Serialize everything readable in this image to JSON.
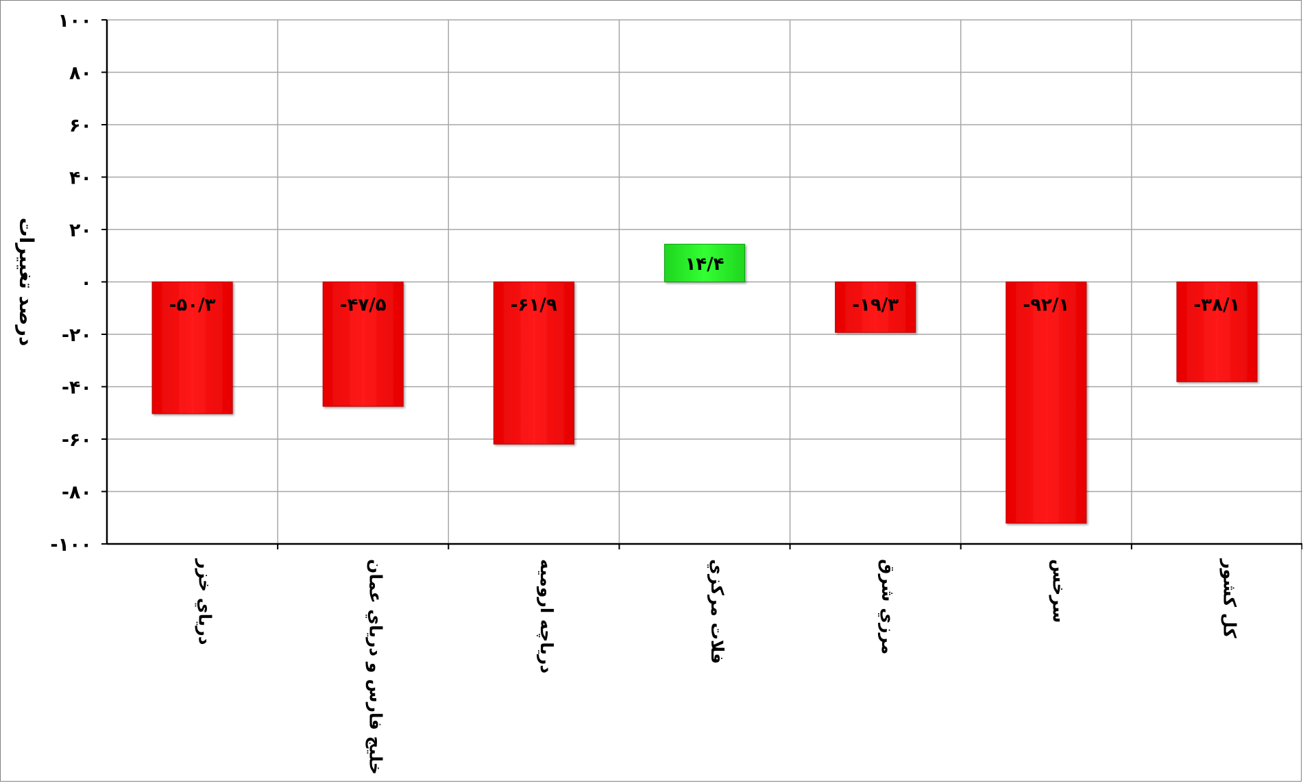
{
  "chart_data": {
    "type": "bar",
    "title": "",
    "xlabel": "",
    "ylabel": "درصد تغییرات",
    "ylim": [
      -100,
      100
    ],
    "ytick_values": [
      100,
      80,
      60,
      40,
      20,
      0,
      -20,
      -40,
      -60,
      -80,
      -100
    ],
    "ytick_labels": [
      "۱۰۰",
      "۸۰",
      "۶۰",
      "۴۰",
      "۲۰",
      "۰",
      "-۲۰",
      "-۴۰",
      "-۶۰",
      "-۸۰",
      "-۱۰۰"
    ],
    "grid": true,
    "legend": "none",
    "categories": [
      "درياي خزر",
      "خليج فارس و درياي عمان",
      "درياچه اروميه",
      "فلات مركزي",
      "مرزي شرق",
      "سرخس",
      "كل كشور"
    ],
    "values": [
      -50.3,
      -47.5,
      -61.9,
      14.4,
      -19.3,
      -92.1,
      -38.1
    ],
    "data_labels": [
      "-۵۰/۳",
      "-۴۷/۵",
      "-۶۱/۹",
      "۱۴/۴",
      "-۱۹/۳",
      "-۹۲/۱",
      "-۳۸/۱"
    ],
    "colors": {
      "negative": "#ff0000",
      "positive": "#00ee00",
      "grid": "#a6a6a6",
      "axis": "#000000"
    }
  }
}
